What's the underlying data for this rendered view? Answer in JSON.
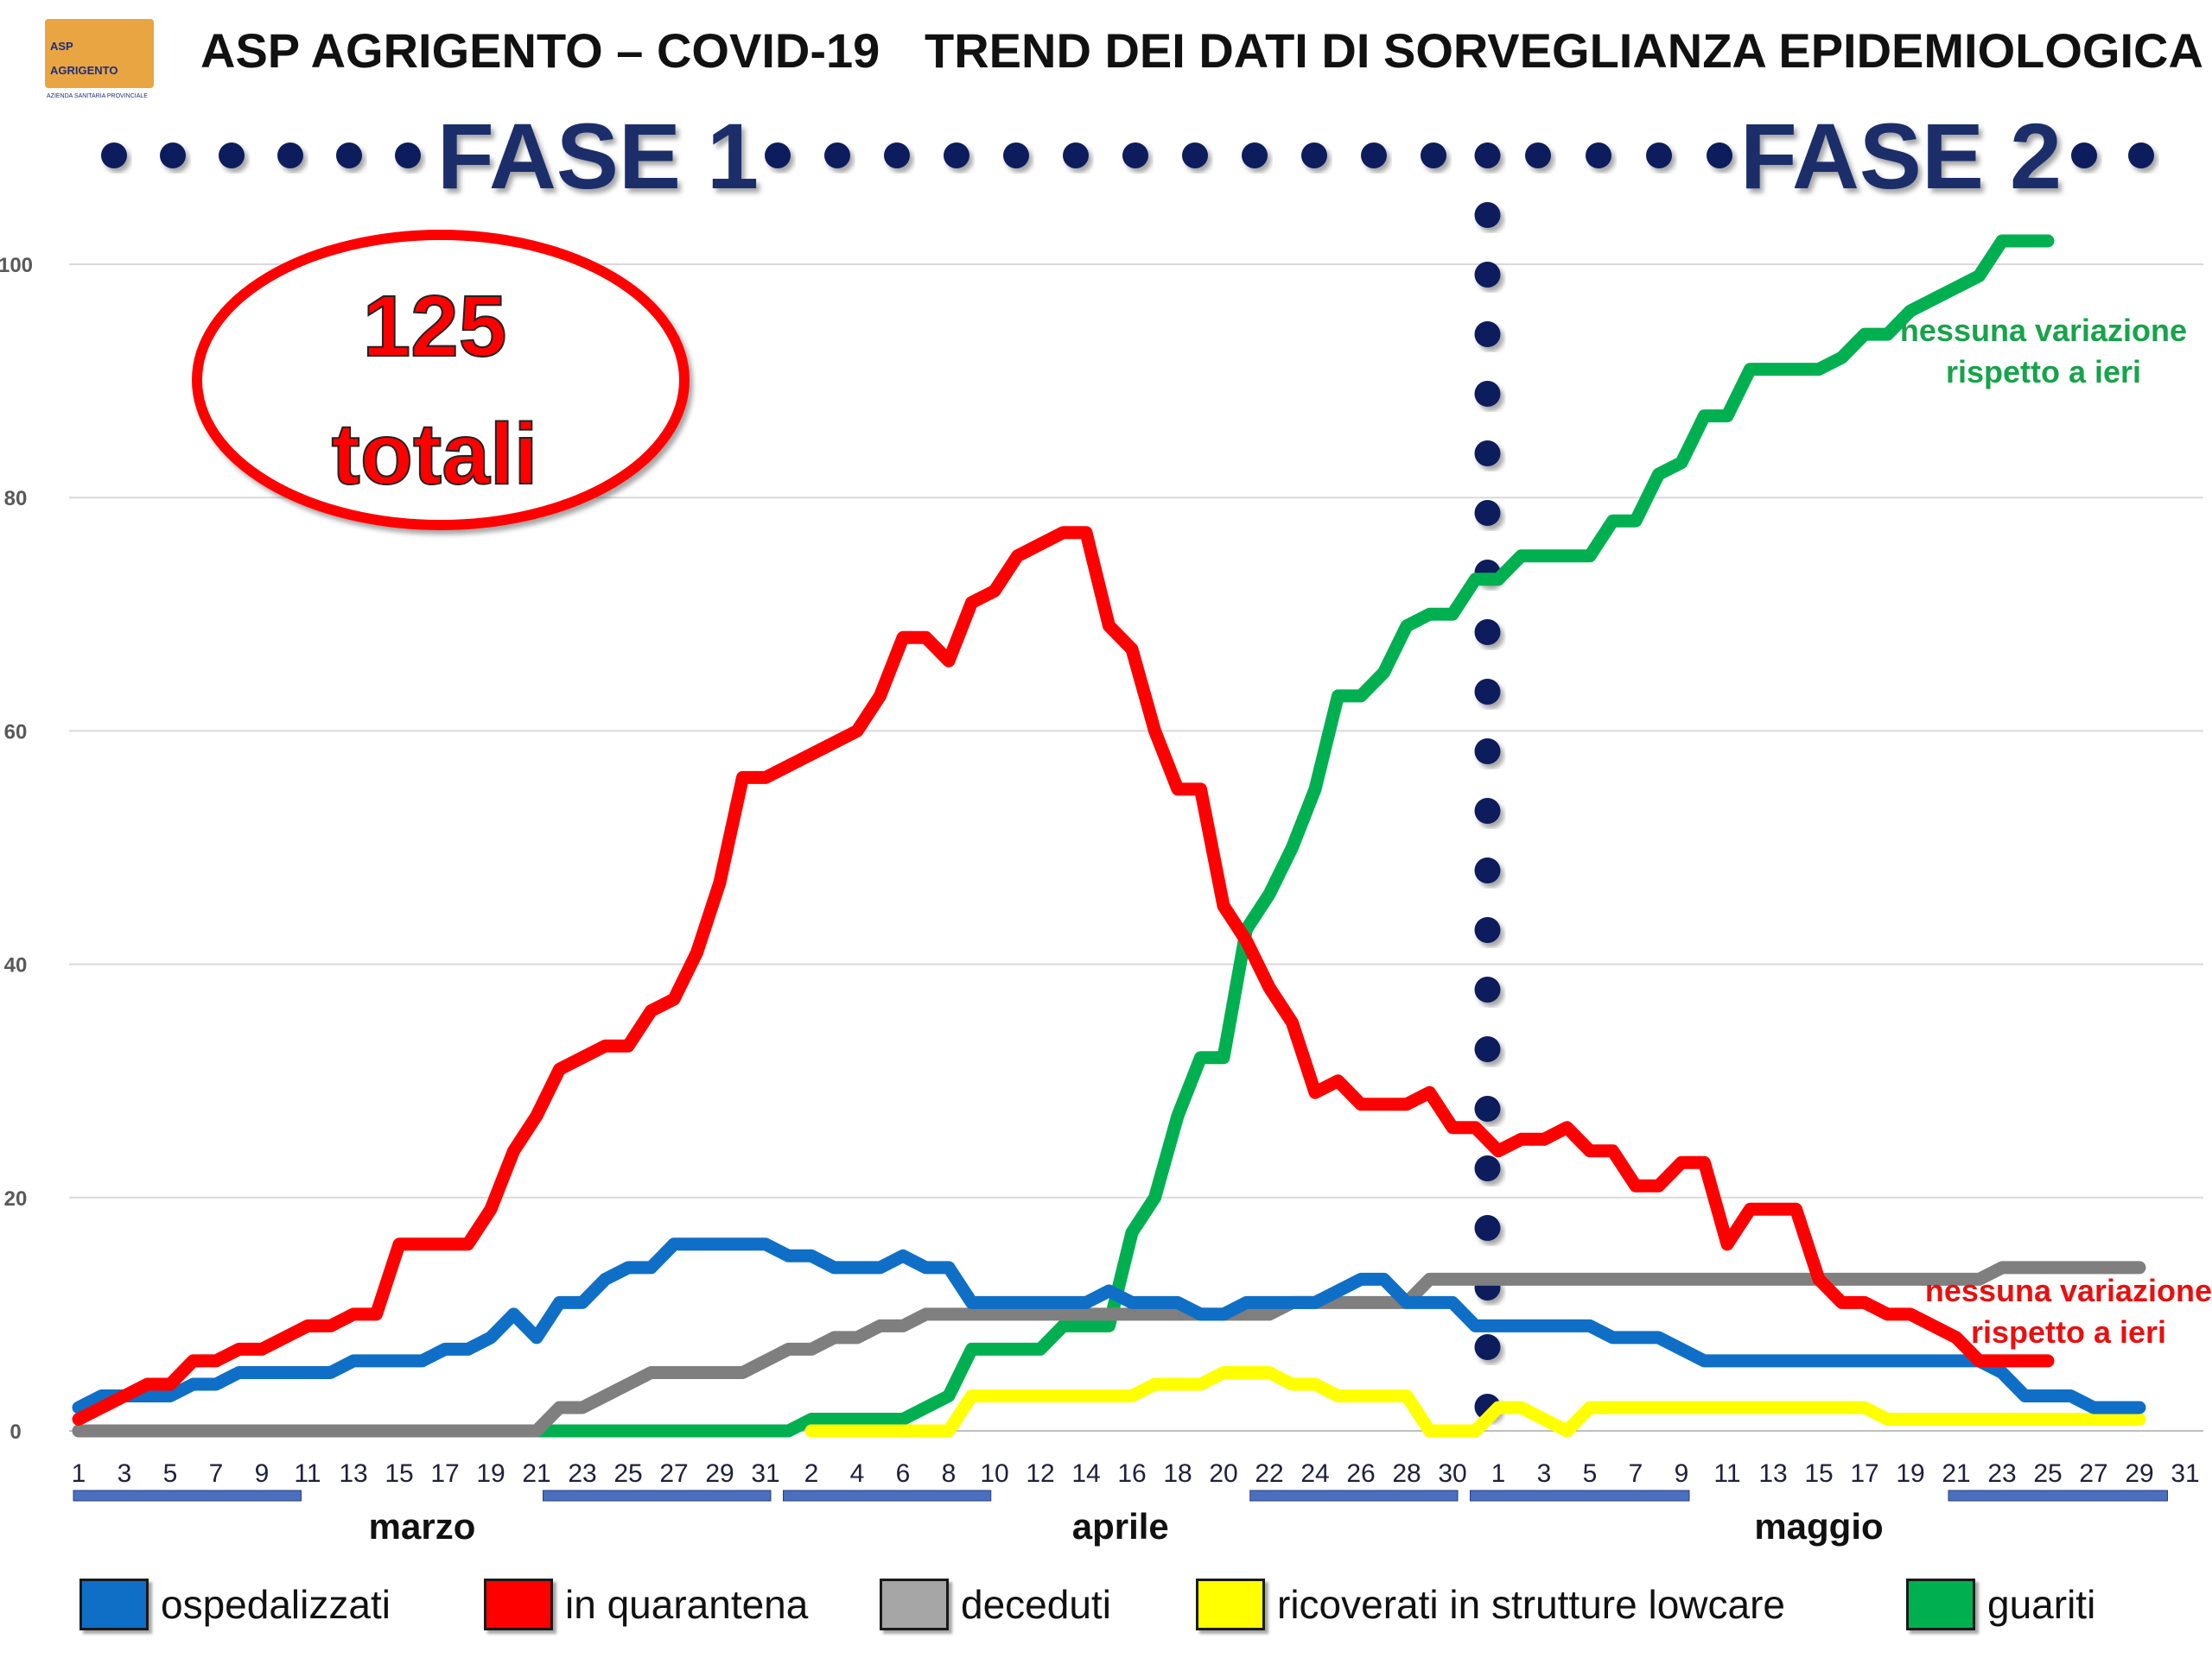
{
  "header": {
    "logo_line1": "ASP",
    "logo_line2": "AGRIGENTO",
    "logo_sub": "AZIENDA SANITARIA PROVINCIALE",
    "title_left": "ASP AGRIGENTO – COVID-19",
    "title_right": "TREND DEI DATI DI SORVEGLIANZA EPIDEMIOLOGICA"
  },
  "phases": [
    "FASE 1",
    "FASE 2"
  ],
  "total_badge": {
    "number": "125",
    "label": "totali"
  },
  "annotations": [
    {
      "text_line1": "nessuna variazione",
      "text_line2": "rispetto a ieri",
      "color": "#17a34a"
    },
    {
      "text_line1": "nessuna variazione",
      "text_line2": "rispetto a ieri",
      "color": "#e81010"
    }
  ],
  "colors": {
    "ospedalizzati": "#0f6fc6",
    "in_quarantena": "#ff0000",
    "deceduti": "#7f7f7f",
    "ricoverati": "#ffff00",
    "guariti": "#00b050",
    "phase_dots": "#0d1f5c"
  },
  "legend": [
    {
      "label": "ospedalizzati",
      "color": "#0f6fc6"
    },
    {
      "label": "in quarantena",
      "color": "#ff0000"
    },
    {
      "label": "deceduti",
      "color": "#a6a6a6"
    },
    {
      "label": "ricoverati in strutture lowcare",
      "color": "#ffff00"
    },
    {
      "label": "guariti",
      "color": "#00b050"
    }
  ],
  "chart_data": {
    "type": "line",
    "ylim": [
      0,
      100
    ],
    "y_ticks": [
      0,
      20,
      40,
      60,
      80,
      100
    ],
    "grid": true,
    "months": [
      {
        "name": "marzo",
        "days": 31
      },
      {
        "name": "aprile",
        "days": 30
      },
      {
        "name": "maggio",
        "days": 31
      }
    ],
    "x_tick_labels": [
      "1",
      "3",
      "5",
      "7",
      "9",
      "11",
      "13",
      "15",
      "17",
      "19",
      "21",
      "23",
      "25",
      "27",
      "29",
      "31",
      "2",
      "4",
      "6",
      "8",
      "10",
      "12",
      "14",
      "16",
      "18",
      "20",
      "22",
      "24",
      "26",
      "28",
      "30",
      "1",
      "3",
      "5",
      "7",
      "9",
      "11",
      "13",
      "15",
      "17",
      "19",
      "21",
      "23",
      "25",
      "27",
      "29",
      "31"
    ],
    "phase_2_start": "1 maggio",
    "series": [
      {
        "name": "ospedalizzati",
        "values": [
          2,
          3,
          3,
          3,
          3,
          4,
          4,
          5,
          5,
          5,
          5,
          5,
          6,
          6,
          6,
          6,
          7,
          7,
          8,
          10,
          8,
          11,
          11,
          13,
          14,
          14,
          16,
          16,
          16,
          16,
          16,
          15,
          15,
          14,
          14,
          14,
          15,
          14,
          14,
          11,
          11,
          11,
          11,
          11,
          11,
          12,
          11,
          11,
          11,
          10,
          10,
          11,
          11,
          11,
          11,
          12,
          13,
          13,
          11,
          11,
          11,
          9,
          9,
          9,
          9,
          9,
          9,
          8,
          8,
          8,
          7,
          6,
          6,
          6,
          6,
          6,
          6,
          6,
          6,
          6,
          6,
          6,
          6,
          6,
          5,
          3,
          3,
          3,
          2,
          2,
          2
        ]
      },
      {
        "name": "in quarantena",
        "values": [
          1,
          2,
          3,
          4,
          4,
          6,
          6,
          7,
          7,
          8,
          9,
          9,
          10,
          10,
          16,
          16,
          16,
          16,
          19,
          24,
          27,
          31,
          32,
          33,
          33,
          36,
          37,
          41,
          47,
          56,
          56,
          57,
          58,
          59,
          60,
          63,
          68,
          68,
          66,
          71,
          72,
          75,
          76,
          77,
          77,
          69,
          67,
          60,
          55,
          55,
          45,
          42,
          38,
          35,
          29,
          30,
          28,
          28,
          28,
          29,
          26,
          26,
          24,
          25,
          25,
          26,
          24,
          24,
          21,
          21,
          23,
          23,
          16,
          19,
          19,
          19,
          13,
          11,
          11,
          10,
          10,
          9,
          8,
          6,
          6,
          6,
          6
        ]
      },
      {
        "name": "deceduti",
        "values": [
          0,
          0,
          0,
          0,
          0,
          0,
          0,
          0,
          0,
          0,
          0,
          0,
          0,
          0,
          0,
          0,
          0,
          0,
          0,
          0,
          0,
          2,
          2,
          3,
          4,
          5,
          5,
          5,
          5,
          5,
          6,
          7,
          7,
          8,
          8,
          9,
          9,
          10,
          10,
          10,
          10,
          10,
          10,
          10,
          10,
          10,
          10,
          10,
          10,
          10,
          10,
          10,
          10,
          11,
          11,
          11,
          11,
          11,
          11,
          13,
          13,
          13,
          13,
          13,
          13,
          13,
          13,
          13,
          13,
          13,
          13,
          13,
          13,
          13,
          13,
          13,
          13,
          13,
          13,
          13,
          13,
          13,
          13,
          13,
          14,
          14,
          14,
          14,
          14,
          14,
          14
        ]
      },
      {
        "name": "ricoverati in strutture lowcare",
        "values": [
          null,
          null,
          null,
          null,
          null,
          null,
          null,
          null,
          null,
          null,
          null,
          null,
          null,
          null,
          null,
          null,
          null,
          null,
          null,
          null,
          null,
          null,
          null,
          null,
          null,
          null,
          null,
          null,
          null,
          null,
          null,
          null,
          0,
          0,
          0,
          0,
          0,
          0,
          0,
          3,
          3,
          3,
          3,
          3,
          3,
          3,
          3,
          4,
          4,
          4,
          5,
          5,
          5,
          4,
          4,
          3,
          3,
          3,
          3,
          0,
          0,
          0,
          2,
          2,
          1,
          0,
          2,
          2,
          2,
          2,
          2,
          2,
          2,
          2,
          2,
          2,
          2,
          2,
          2,
          1,
          1,
          1,
          1,
          1,
          1,
          1,
          1,
          1,
          1,
          1,
          1
        ]
      },
      {
        "name": "guariti",
        "values": [
          0,
          0,
          0,
          0,
          0,
          0,
          0,
          0,
          0,
          0,
          0,
          0,
          0,
          0,
          0,
          0,
          0,
          0,
          0,
          0,
          0,
          0,
          0,
          0,
          0,
          0,
          0,
          0,
          0,
          0,
          0,
          0,
          1,
          1,
          1,
          1,
          1,
          2,
          3,
          7,
          7,
          7,
          7,
          9,
          9,
          9,
          17,
          20,
          27,
          32,
          32,
          43,
          46,
          50,
          55,
          63,
          63,
          65,
          69,
          70,
          70,
          73,
          73,
          75,
          75,
          75,
          75,
          78,
          78,
          82,
          83,
          87,
          87,
          91,
          91,
          91,
          91,
          92,
          94,
          94,
          96,
          97,
          98,
          99,
          102,
          102,
          102
        ]
      }
    ]
  }
}
